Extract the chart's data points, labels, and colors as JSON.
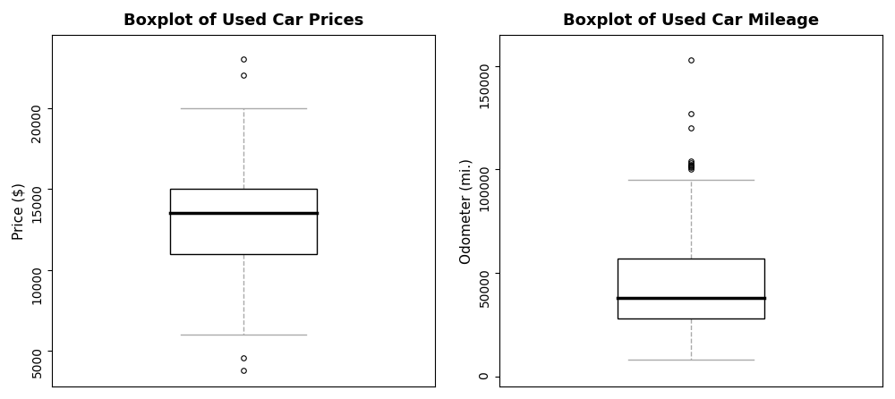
{
  "plot1": {
    "title": "Boxplot of Used Car Prices",
    "ylabel": "Price ($)",
    "median": 13500,
    "q1": 11000,
    "q3": 15000,
    "whisker_low": 6000,
    "whisker_high": 20000,
    "outliers": [
      3800,
      4600,
      22000,
      23000
    ],
    "ylim": [
      2800,
      24500
    ],
    "yticks": [
      5000,
      10000,
      15000,
      20000
    ]
  },
  "plot2": {
    "title": "Boxplot of Used Car Mileage",
    "ylabel": "Odometer (mi.)",
    "median": 38000,
    "q1": 28000,
    "q3": 57000,
    "whisker_low": 8000,
    "whisker_high": 95000,
    "outliers": [
      100000,
      101000,
      101500,
      102000,
      102500,
      103000,
      104000,
      120000,
      127000,
      153000
    ],
    "ylim": [
      -5000,
      165000
    ],
    "yticks": [
      0,
      50000,
      100000,
      150000
    ]
  },
  "box_width": 0.5,
  "box_color": "white",
  "median_color": "black",
  "whisker_color": "#aaaaaa",
  "box_edge_color": "black",
  "outlier_marker": "o",
  "outlier_color": "black",
  "outlier_size": 4,
  "background_color": "white",
  "title_fontsize": 13,
  "label_fontsize": 11,
  "tick_fontsize": 10,
  "title_fontweight": "bold",
  "figsize": [
    10.0,
    4.46
  ],
  "dpi": 100
}
